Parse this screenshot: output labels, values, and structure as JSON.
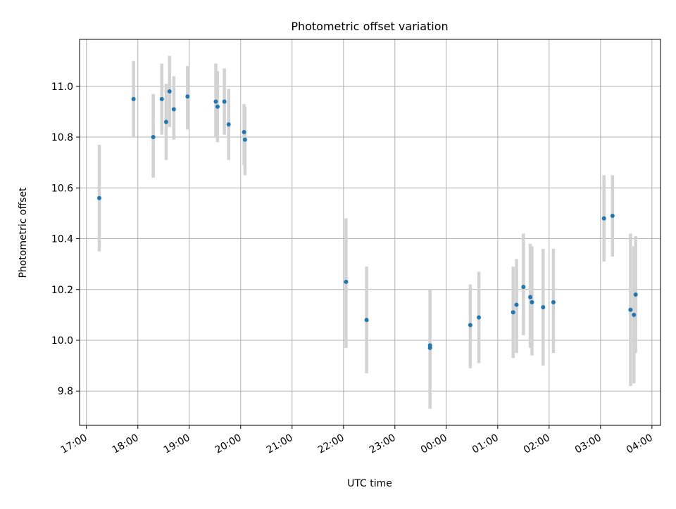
{
  "chart_data": {
    "type": "scatter",
    "title": "Photometric offset variation",
    "xlabel": "UTC time",
    "ylabel": "Photometric offset",
    "x_axis": {
      "scale": "time",
      "start": "17:00",
      "range_minutes": [
        -8,
        670
      ],
      "tick_labels": [
        "17:00",
        "18:00",
        "19:00",
        "20:00",
        "21:00",
        "22:00",
        "23:00",
        "00:00",
        "01:00",
        "02:00",
        "03:00",
        "04:00"
      ],
      "tick_minutes": [
        0,
        60,
        120,
        180,
        240,
        300,
        360,
        420,
        480,
        540,
        600,
        660
      ]
    },
    "ylim": [
      9.665,
      11.185
    ],
    "y_ticks": [
      9.8,
      10.0,
      10.2,
      10.4,
      10.6,
      10.8,
      11.0
    ],
    "y_tick_labels": [
      "9.8",
      "10.0",
      "10.2",
      "10.4",
      "10.6",
      "10.8",
      "11.0"
    ],
    "grid": true,
    "colors": {
      "point": "#1f77b4",
      "errorbar": "#d3d3d3",
      "grid": "#b0b0b0"
    },
    "series": [
      {
        "points": [
          {
            "t": "17:15",
            "y": 10.56,
            "lo": 10.35,
            "hi": 10.77
          },
          {
            "t": "17:55",
            "y": 10.95,
            "lo": 10.8,
            "hi": 11.1
          },
          {
            "t": "18:18",
            "y": 10.8,
            "lo": 10.64,
            "hi": 10.97
          },
          {
            "t": "18:28",
            "y": 10.95,
            "lo": 10.81,
            "hi": 11.09
          },
          {
            "t": "18:33",
            "y": 10.86,
            "lo": 10.71,
            "hi": 11.01
          },
          {
            "t": "18:37",
            "y": 10.98,
            "lo": 10.84,
            "hi": 11.12
          },
          {
            "t": "18:42",
            "y": 10.91,
            "lo": 10.79,
            "hi": 11.04
          },
          {
            "t": "18:58",
            "y": 10.96,
            "lo": 10.83,
            "hi": 11.08
          },
          {
            "t": "19:31",
            "y": 10.94,
            "lo": 10.8,
            "hi": 11.09
          },
          {
            "t": "19:33",
            "y": 10.92,
            "lo": 10.78,
            "hi": 11.06
          },
          {
            "t": "19:41",
            "y": 10.94,
            "lo": 10.81,
            "hi": 11.07
          },
          {
            "t": "19:46",
            "y": 10.85,
            "lo": 10.71,
            "hi": 10.99
          },
          {
            "t": "20:04",
            "y": 10.82,
            "lo": 10.69,
            "hi": 10.93
          },
          {
            "t": "20:05",
            "y": 10.79,
            "lo": 10.65,
            "hi": 10.92
          },
          {
            "t": "22:03",
            "y": 10.23,
            "lo": 9.97,
            "hi": 10.48
          },
          {
            "t": "22:27",
            "y": 10.08,
            "lo": 9.87,
            "hi": 10.29
          },
          {
            "t": "23:41",
            "y": 9.98,
            "lo": 9.74,
            "hi": 10.2
          },
          {
            "t": "23:41",
            "y": 9.97,
            "lo": 9.73,
            "hi": 10.2
          },
          {
            "t": "00:28",
            "y": 10.06,
            "lo": 9.89,
            "hi": 10.22
          },
          {
            "t": "00:38",
            "y": 10.09,
            "lo": 9.91,
            "hi": 10.27
          },
          {
            "t": "01:18",
            "y": 10.11,
            "lo": 9.93,
            "hi": 10.29
          },
          {
            "t": "01:22",
            "y": 10.14,
            "lo": 9.95,
            "hi": 10.32
          },
          {
            "t": "01:30",
            "y": 10.21,
            "lo": 10.02,
            "hi": 10.42
          },
          {
            "t": "01:38",
            "y": 10.17,
            "lo": 9.97,
            "hi": 10.38
          },
          {
            "t": "01:40",
            "y": 10.15,
            "lo": 9.94,
            "hi": 10.37
          },
          {
            "t": "01:53",
            "y": 10.13,
            "lo": 9.9,
            "hi": 10.36
          },
          {
            "t": "02:05",
            "y": 10.15,
            "lo": 9.95,
            "hi": 10.36
          },
          {
            "t": "03:04",
            "y": 10.48,
            "lo": 10.31,
            "hi": 10.65
          },
          {
            "t": "03:14",
            "y": 10.49,
            "lo": 10.33,
            "hi": 10.65
          },
          {
            "t": "03:35",
            "y": 10.12,
            "lo": 9.82,
            "hi": 10.42
          },
          {
            "t": "03:39",
            "y": 10.1,
            "lo": 9.83,
            "hi": 10.37
          },
          {
            "t": "03:41",
            "y": 10.18,
            "lo": 9.95,
            "hi": 10.41
          }
        ]
      }
    ]
  }
}
